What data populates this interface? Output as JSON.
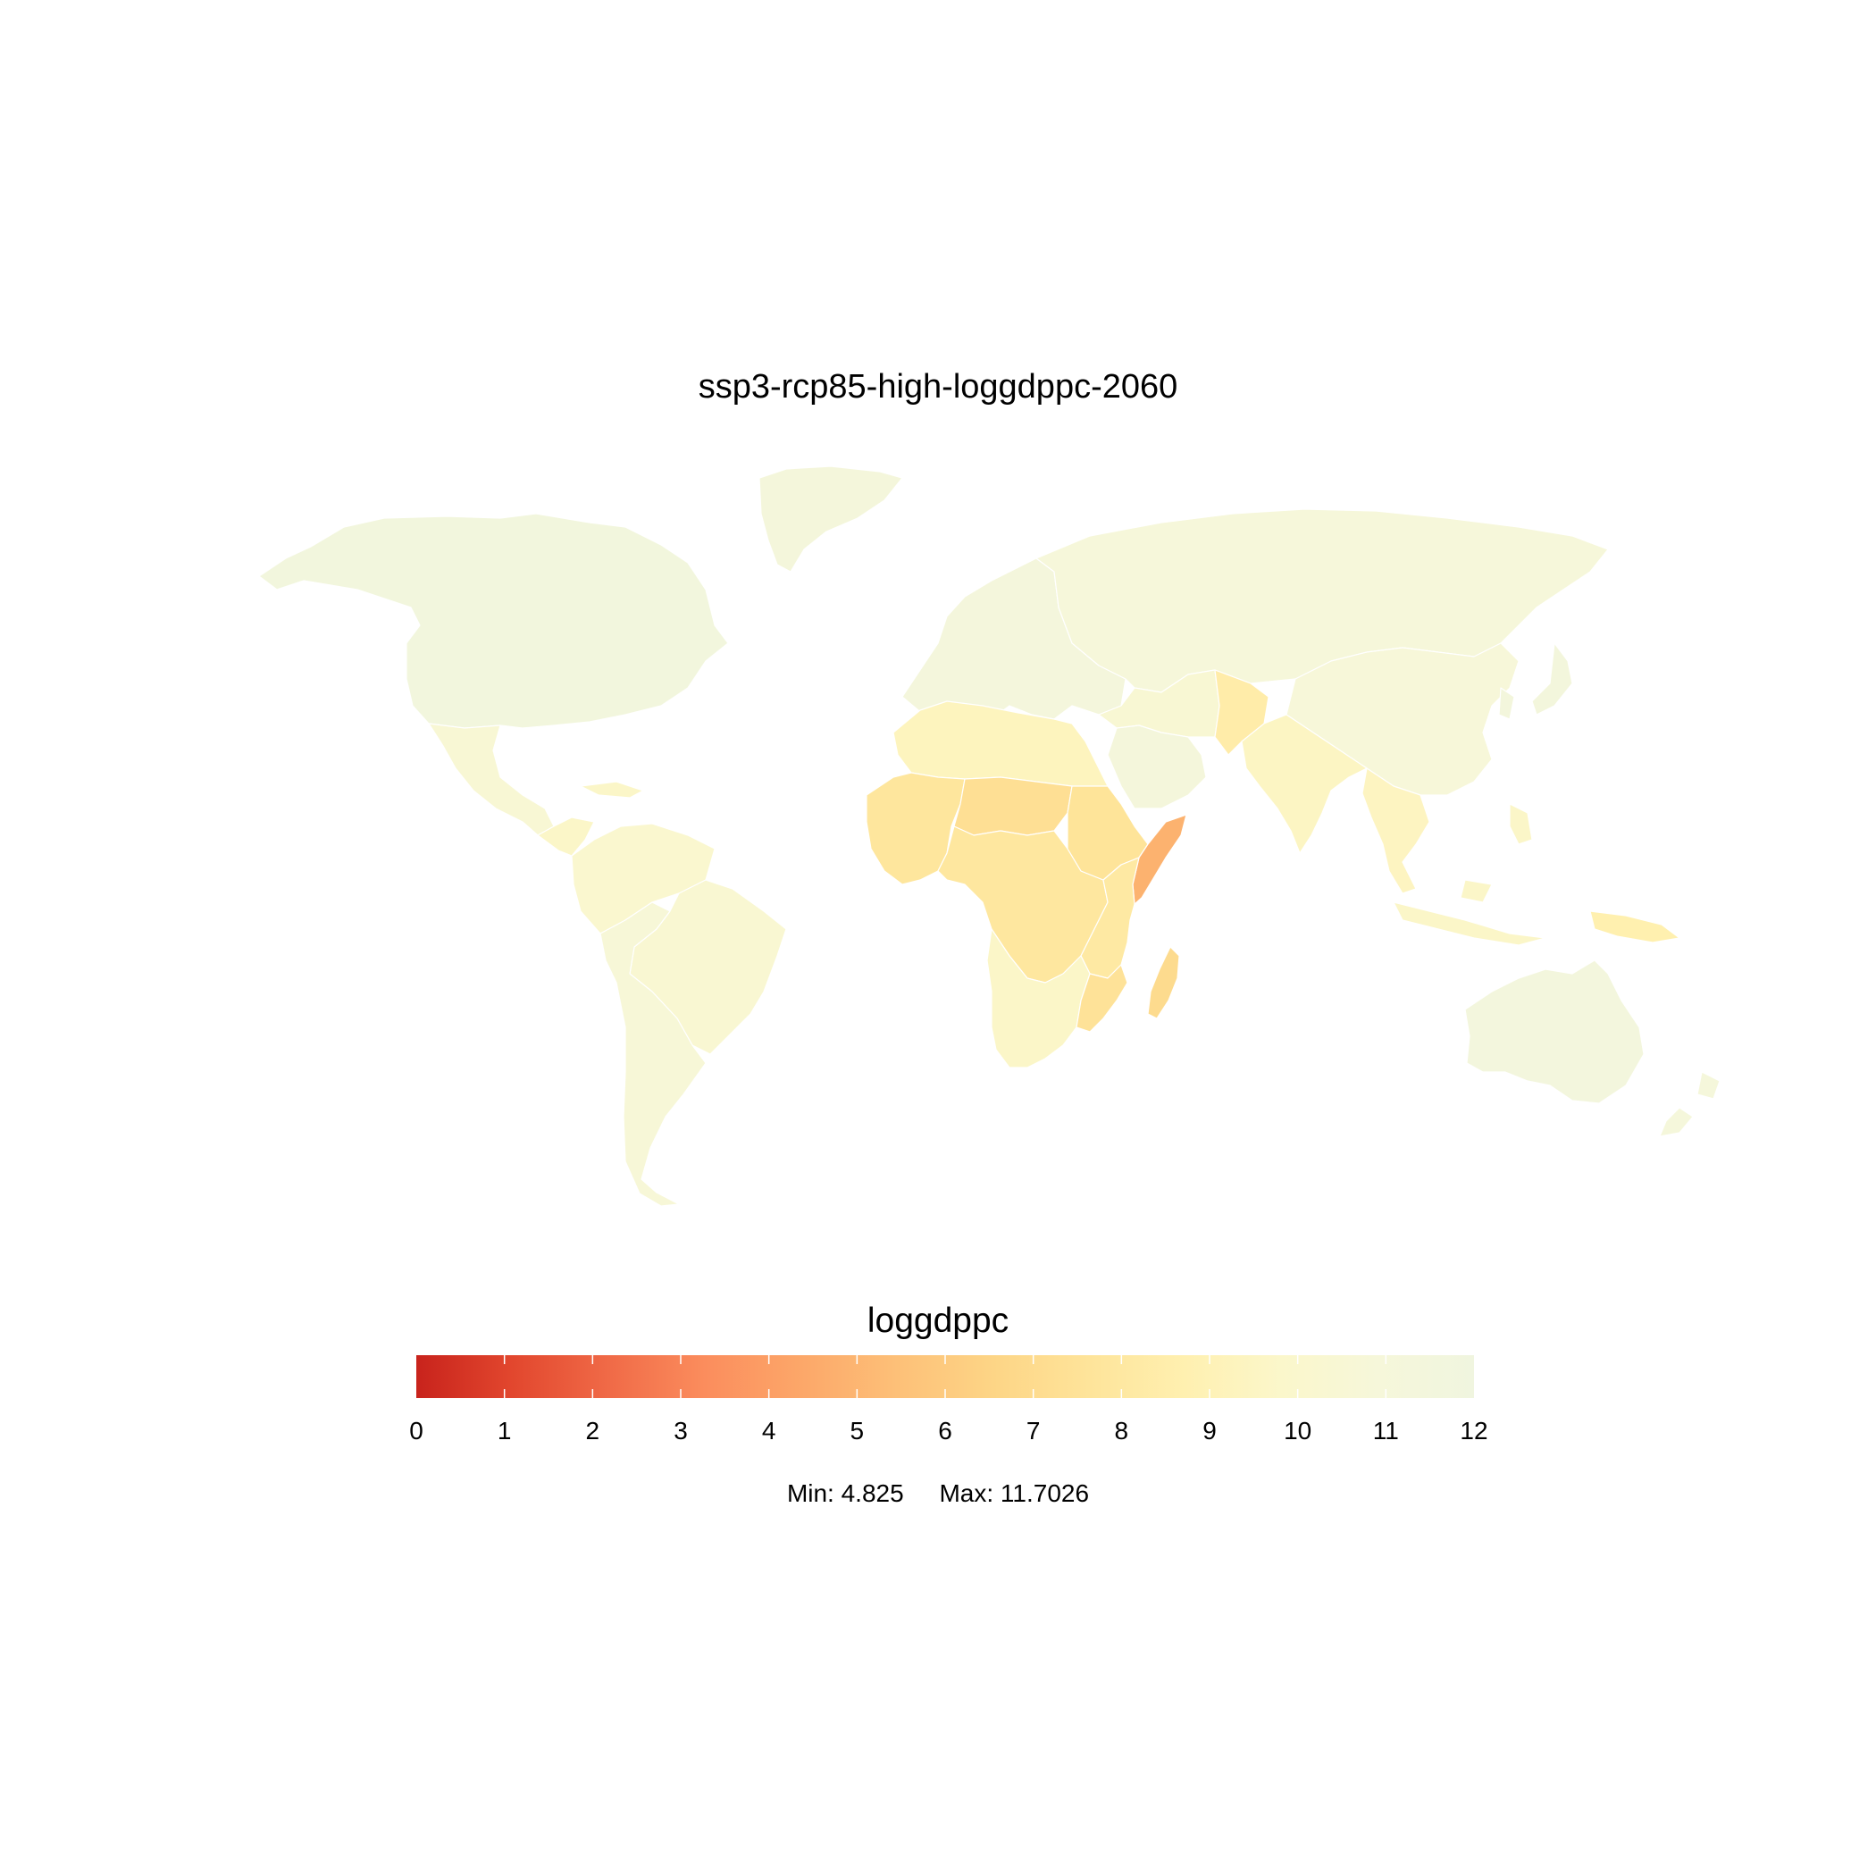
{
  "map": {
    "title": "ssp3-rcp85-high-loggdppc-2060",
    "regions": [
      {
        "name": "North America",
        "value": 11.6
      },
      {
        "name": "Greenland",
        "value": 11.2
      },
      {
        "name": "Mexico",
        "value": 10.5
      },
      {
        "name": "Central America and Caribbean",
        "value": 9.7
      },
      {
        "name": "South America north",
        "value": 10.1
      },
      {
        "name": "Brazil",
        "value": 10.3
      },
      {
        "name": "Southern Cone",
        "value": 10.7
      },
      {
        "name": "Europe",
        "value": 11.3
      },
      {
        "name": "Russia and Central Asia",
        "value": 11.0
      },
      {
        "name": "China and East Asia",
        "value": 10.8
      },
      {
        "name": "Japan and Korea",
        "value": 11.4
      },
      {
        "name": "Middle East",
        "value": 10.4
      },
      {
        "name": "Arabian Peninsula",
        "value": 11.2
      },
      {
        "name": "Afghanistan and Pakistan",
        "value": 8.4
      },
      {
        "name": "India",
        "value": 9.5
      },
      {
        "name": "Southeast Asia",
        "value": 9.4
      },
      {
        "name": "Indonesia and Philippines",
        "value": 9.7
      },
      {
        "name": "Papua New Guinea",
        "value": 8.7
      },
      {
        "name": "Australia",
        "value": 11.5
      },
      {
        "name": "New Zealand",
        "value": 11.1
      },
      {
        "name": "North Africa",
        "value": 9.3
      },
      {
        "name": "West Africa",
        "value": 7.8
      },
      {
        "name": "Sahel",
        "value": 7.3
      },
      {
        "name": "Central Africa",
        "value": 7.9
      },
      {
        "name": "Horn of Africa",
        "value": 7.6
      },
      {
        "name": "Somalia",
        "value": 4.825
      },
      {
        "name": "East Africa",
        "value": 8.1
      },
      {
        "name": "Southern Africa",
        "value": 9.7
      },
      {
        "name": "Mozambique",
        "value": 7.5
      },
      {
        "name": "Madagascar",
        "value": 7.0
      }
    ]
  },
  "legend": {
    "title": "loggdppc",
    "min": 0,
    "max": 12,
    "ticks": [
      "0",
      "1",
      "2",
      "3",
      "4",
      "5",
      "6",
      "7",
      "8",
      "9",
      "10",
      "11",
      "12"
    ],
    "colors": [
      "#c8231c",
      "#e2472e",
      "#f06a47",
      "#fb8d5d",
      "#fca769",
      "#fdc078",
      "#fdd586",
      "#fee49a",
      "#fff0b0",
      "#fbf7cb",
      "#f6f7da",
      "#f0f5df"
    ],
    "min_label": "Min: 4.825",
    "max_label": "Max: 11.7026"
  }
}
